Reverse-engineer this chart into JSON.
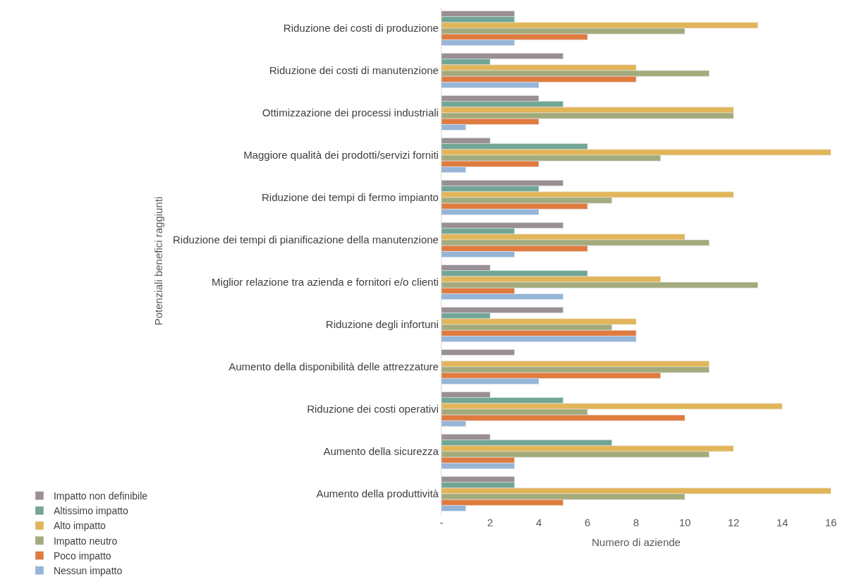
{
  "chart_data": {
    "type": "bar",
    "orientation": "horizontal",
    "xlabel": "Numero di aziende",
    "ylabel": "Potenziali benefici raggiunti",
    "categories": [
      "Riduzione dei costi di produzione",
      "Riduzione dei costi di manutenzione",
      "Ottimizzazione dei processi industriali",
      "Maggiore qualità dei prodotti/servizi forniti",
      "Riduzione dei tempi di fermo impianto",
      "Riduzione dei tempi di pianificazione della manutenzione",
      "Miglior relazione tra azienda e fornitori e/o clienti",
      "Riduzione degli infortuni",
      "Aumento della disponibilità delle attrezzature",
      "Riduzione dei costi operativi",
      "Aumento della sicurezza",
      "Aumento della produttività"
    ],
    "series": [
      {
        "name": "Impatto non definibile",
        "color": "#9a8f93",
        "values": [
          3,
          5,
          4,
          2,
          5,
          5,
          2,
          5,
          3,
          2,
          2,
          3
        ]
      },
      {
        "name": "Altissimo impatto",
        "color": "#72a596",
        "values": [
          3,
          2,
          5,
          6,
          4,
          3,
          6,
          2,
          null,
          5,
          7,
          3
        ]
      },
      {
        "name": "Alto impatto",
        "color": "#e2b55a",
        "values": [
          13,
          8,
          12,
          16,
          12,
          10,
          9,
          8,
          11,
          14,
          12,
          16
        ]
      },
      {
        "name": "Impatto neutro",
        "color": "#a3ab7c",
        "values": [
          10,
          11,
          12,
          9,
          7,
          11,
          13,
          7,
          11,
          6,
          11,
          10
        ]
      },
      {
        "name": "Poco impatto",
        "color": "#e07b3f",
        "values": [
          6,
          8,
          4,
          4,
          6,
          6,
          3,
          8,
          9,
          10,
          3,
          5
        ]
      },
      {
        "name": "Nessun impatto",
        "color": "#97b5d6",
        "values": [
          3,
          4,
          1,
          1,
          4,
          3,
          5,
          8,
          4,
          1,
          3,
          1
        ]
      }
    ],
    "xlim": [
      0,
      16
    ],
    "xticks": [
      {
        "value": 0,
        "label": "-"
      },
      2,
      4,
      6,
      8,
      10,
      12,
      14,
      16
    ],
    "legend": "bottom"
  }
}
